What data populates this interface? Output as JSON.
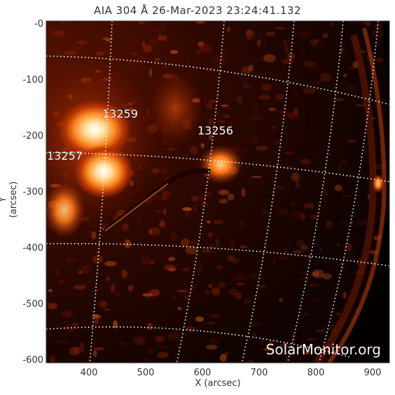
{
  "title": "AIA 304 Å 26-Mar-2023 23:24:41.132",
  "xlabel": "X (arcsec)",
  "ylabel": "Y (arcsec)",
  "x_ticks": [
    "400",
    "500",
    "600",
    "700",
    "800",
    "900"
  ],
  "y_ticks": [
    "-0",
    "-100",
    "-200",
    "-300",
    "-400",
    "-500",
    "-600"
  ],
  "active_regions": [
    {
      "id": "13259",
      "x_arcsec": 430,
      "y_arcsec": -160
    },
    {
      "id": "13256",
      "x_arcsec": 585,
      "y_arcsec": -185
    },
    {
      "id": "13257",
      "x_arcsec": 328,
      "y_arcsec": -225
    }
  ],
  "watermark": "SolarMonitor.org",
  "colors": {
    "background": "#000000",
    "bright": "#fff4d6",
    "mid": "#ff7a1a",
    "dim": "#8a1c00",
    "grid": "#ffffff"
  }
}
